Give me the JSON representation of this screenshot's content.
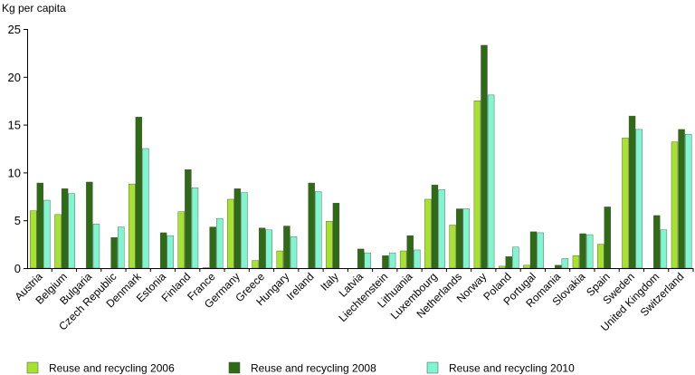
{
  "chart_data": {
    "type": "bar",
    "ylabel": "Kg per capita",
    "xlabel": "",
    "ylim": [
      0,
      25
    ],
    "yticks": [
      0,
      5,
      10,
      15,
      20,
      25
    ],
    "grid": false,
    "legend_position": "bottom",
    "categories": [
      "Austria",
      "Belgium",
      "Bulgaria",
      "Czech Republic",
      "Denmark",
      "Estonia",
      "Finland",
      "France",
      "Germany",
      "Greece",
      "Hungary",
      "Ireland",
      "Italy",
      "Latvia",
      "Liechtenstein",
      "Lithuania",
      "Luxembourg",
      "Netherlands",
      "Norway",
      "Poland",
      "Portugal",
      "Romania",
      "Slovakia",
      "Spain",
      "Sweden",
      "United Kingdom",
      "Switzerland"
    ],
    "series": [
      {
        "name": "Reuse and recycling 2006",
        "color": "#a6e22e",
        "values": [
          6.0,
          5.6,
          null,
          null,
          8.8,
          null,
          5.9,
          0.05,
          7.2,
          0.8,
          1.8,
          null,
          4.9,
          null,
          null,
          1.8,
          7.2,
          4.5,
          17.5,
          0.2,
          0.3,
          null,
          1.3,
          2.5,
          13.6,
          null,
          13.2
        ]
      },
      {
        "name": "Reuse and recycling 2008",
        "color": "#2f6b14",
        "values": [
          8.9,
          8.3,
          9.0,
          3.2,
          15.8,
          3.7,
          10.3,
          4.3,
          8.3,
          4.2,
          4.4,
          8.9,
          6.8,
          2.0,
          1.3,
          3.4,
          8.7,
          6.2,
          23.3,
          1.2,
          3.8,
          0.3,
          3.6,
          6.4,
          15.9,
          5.5,
          14.5
        ]
      },
      {
        "name": "Reuse and recycling 2010",
        "color": "#7ff5d0",
        "values": [
          7.1,
          7.8,
          4.6,
          4.3,
          12.5,
          3.4,
          8.4,
          5.2,
          7.9,
          4.0,
          3.3,
          8.0,
          null,
          1.6,
          1.6,
          1.9,
          8.2,
          6.2,
          18.1,
          2.2,
          3.7,
          1.0,
          3.5,
          null,
          14.5,
          4.0,
          14.0
        ]
      }
    ]
  }
}
